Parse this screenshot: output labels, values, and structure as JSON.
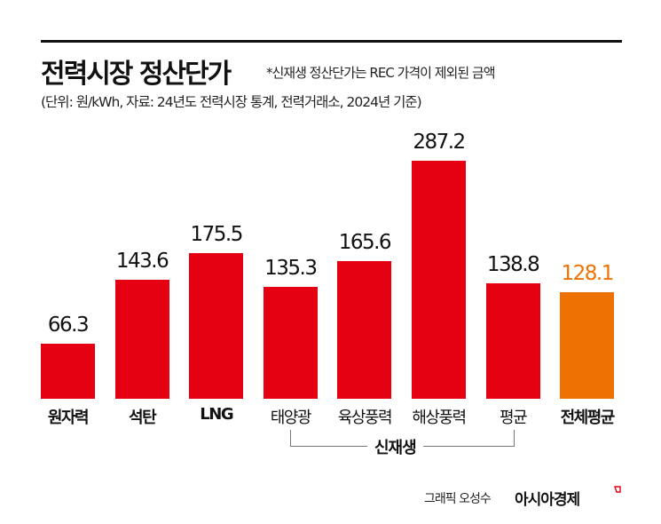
{
  "header": {
    "title": "전력시장 정산단가",
    "note": "*신재생 정산단가는 REC 가격이 제외된 금액",
    "subtitle": "(단위: 원/kWh, 자료: 24년도 전력시장 통계, 전력거래소, 2024년 기준)"
  },
  "colors": {
    "bar": "#e50012",
    "highlight": "#ee7203",
    "text": "#111111"
  },
  "bars": [
    {
      "label": "원자력",
      "value": "66.3",
      "bold": true
    },
    {
      "label": "석탄",
      "value": "143.6",
      "bold": true
    },
    {
      "label": "LNG",
      "value": "175.5",
      "bold": true
    },
    {
      "label": "태양광",
      "value": "135.3",
      "bold": false
    },
    {
      "label": "육상풍력",
      "value": "165.6",
      "bold": false
    },
    {
      "label": "해상풍력",
      "value": "287.2",
      "bold": false
    },
    {
      "label": "평균",
      "value": "138.8",
      "bold": false
    },
    {
      "label": "전체평균",
      "value": "128.1",
      "bold": true
    }
  ],
  "group": {
    "label": "신재생"
  },
  "footer": {
    "credit": "그래픽 오성수",
    "brand": "아시아경제"
  },
  "chart_data": {
    "type": "bar",
    "title": "전력시장 정산단가",
    "subtitle": "(단위: 원/kWh, 자료: 24년도 전력시장 통계, 전력거래소, 2024년 기준)",
    "annotation": "*신재생 정산단가는 REC 가격이 제외된 금액",
    "categories": [
      "원자력",
      "석탄",
      "LNG",
      "태양광",
      "육상풍력",
      "해상풍력",
      "평균",
      "전체평균"
    ],
    "values": [
      66.3,
      143.6,
      175.5,
      135.3,
      165.6,
      287.2,
      138.8,
      128.1
    ],
    "groups": [
      {
        "label": "신재생",
        "categories": [
          "태양광",
          "육상풍력",
          "해상풍력",
          "평균"
        ]
      }
    ],
    "highlight": {
      "category": "전체평균",
      "color": "#ee7203"
    },
    "bar_color": "#e50012",
    "xlabel": "",
    "ylabel": "원/kWh",
    "ylim": [
      0,
      300
    ],
    "grid": false,
    "legend": false
  }
}
